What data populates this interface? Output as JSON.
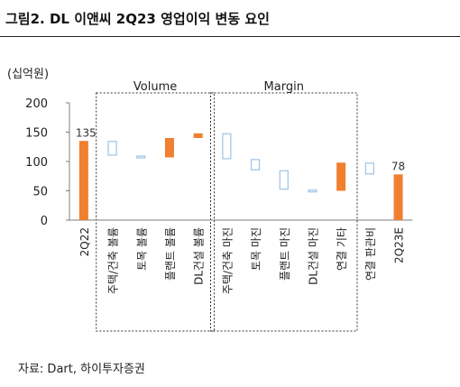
{
  "header": {
    "title": "그림2. DL 이앤씨 2Q23 영업이익 변동 요인"
  },
  "footer": {
    "source": "자료: Dart,  하이투자증권"
  },
  "colors": {
    "solid": "#f07f30",
    "outline": "#9dc3e6",
    "axis": "#7f7f7f",
    "text": "#222222"
  },
  "chart_data": {
    "type": "waterfall",
    "unit_label": "(십억원)",
    "ylim": [
      0,
      200
    ],
    "yticks": [
      "0",
      "50",
      "100",
      "150",
      "200"
    ],
    "groups": [
      {
        "label": "Volume",
        "from": 1,
        "to": 4
      },
      {
        "label": "Margin",
        "from": 5,
        "to": 9
      }
    ],
    "steps": [
      {
        "label": "2Q22",
        "kind": "total",
        "value": 135,
        "value_label": "135"
      },
      {
        "label": "주택/건축 볼륨",
        "kind": "negative",
        "start": 135,
        "end": 110
      },
      {
        "label": "토목 볼륨",
        "kind": "negative",
        "start": 110,
        "end": 107
      },
      {
        "label": "플랜트 볼륨",
        "kind": "positive",
        "start": 107,
        "end": 140
      },
      {
        "label": "DL건설 볼륨",
        "kind": "positive",
        "start": 140,
        "end": 148
      },
      {
        "label": "주택/건축 마진",
        "kind": "negative",
        "start": 148,
        "end": 104
      },
      {
        "label": "토목 마진",
        "kind": "negative",
        "start": 104,
        "end": 85
      },
      {
        "label": "플랜트 마진",
        "kind": "negative",
        "start": 85,
        "end": 52
      },
      {
        "label": "DL건설 마진",
        "kind": "negative",
        "start": 52,
        "end": 50
      },
      {
        "label": "연결 기타",
        "kind": "positive",
        "start": 50,
        "end": 98
      },
      {
        "label": "연결 판관비",
        "kind": "negative",
        "start": 98,
        "end": 78
      },
      {
        "label": "2Q23E",
        "kind": "total",
        "value": 78,
        "value_label": "78"
      }
    ]
  }
}
